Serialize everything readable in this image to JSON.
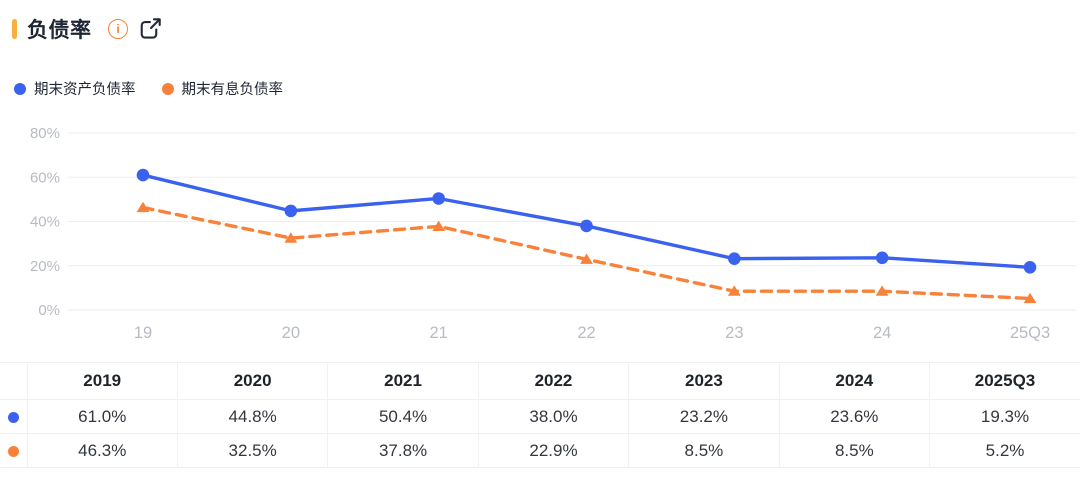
{
  "header": {
    "title": "负债率",
    "info_icon_glyph": "i"
  },
  "legend": [
    {
      "label": "期末资产负债率",
      "color": "#3A62EE"
    },
    {
      "label": "期末有息负债率",
      "color": "#F8823A"
    }
  ],
  "chart_data": {
    "type": "line",
    "x": [
      "19",
      "20",
      "21",
      "22",
      "23",
      "24",
      "25Q3"
    ],
    "series": [
      {
        "name": "期末资产负债率",
        "color": "#3A62EE",
        "style": "solid",
        "marker": "circle",
        "values": [
          61.0,
          44.8,
          50.4,
          38.0,
          23.2,
          23.6,
          19.3
        ]
      },
      {
        "name": "期末有息负债率",
        "color": "#F8823A",
        "style": "dashed",
        "marker": "triangle",
        "values": [
          46.3,
          32.5,
          37.8,
          22.9,
          8.5,
          8.5,
          5.2
        ]
      }
    ],
    "title": "负债率",
    "xlabel": "",
    "ylabel": "",
    "ylim": [
      0,
      80
    ],
    "yticks": [
      0,
      20,
      40,
      60,
      80
    ],
    "ytick_labels": [
      "0%",
      "20%",
      "40%",
      "60%",
      "80%"
    ],
    "grid": true,
    "legend_position": "top-left"
  },
  "table": {
    "columns": [
      "2019",
      "2020",
      "2021",
      "2022",
      "2023",
      "2024",
      "2025Q3"
    ],
    "rows": [
      {
        "series": "期末资产负债率",
        "color": "#3A62EE",
        "cells": [
          "61.0%",
          "44.8%",
          "50.4%",
          "38.0%",
          "23.2%",
          "23.6%",
          "19.3%"
        ]
      },
      {
        "series": "期末有息负债率",
        "color": "#F8823A",
        "cells": [
          "46.3%",
          "32.5%",
          "37.8%",
          "22.9%",
          "8.5%",
          "8.5%",
          "5.2%"
        ]
      }
    ]
  },
  "colors": {
    "accent": "#F9B040",
    "blue": "#3A62EE",
    "orange": "#F8823A",
    "grid": "#ECEDF0",
    "axis_label": "#B7BBC4",
    "title_text": "#1F2633",
    "icon_dark": "#222A37"
  }
}
